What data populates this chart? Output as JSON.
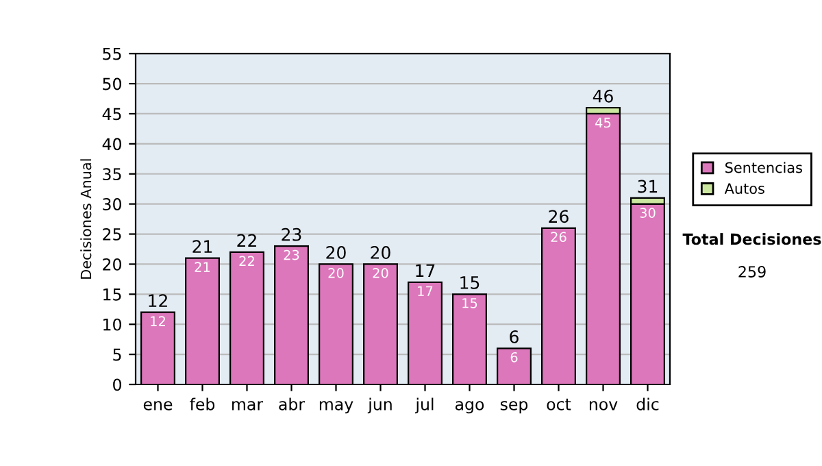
{
  "chart_data": {
    "type": "bar",
    "stacked": true,
    "ylabel": "Decisiones Anual",
    "categories": [
      "ene",
      "feb",
      "mar",
      "abr",
      "may",
      "jun",
      "jul",
      "ago",
      "sep",
      "oct",
      "nov",
      "dic"
    ],
    "series": [
      {
        "name": "Sentencias",
        "color": "#dd77bb",
        "values": [
          12,
          21,
          22,
          23,
          20,
          20,
          17,
          15,
          6,
          26,
          45,
          30
        ],
        "value_labels": [
          "12",
          "21",
          "22",
          "23",
          "20",
          "20",
          "17",
          "15",
          "6",
          "26",
          "45",
          "30"
        ]
      },
      {
        "name": "Autos",
        "color": "#cce8a0",
        "values": [
          null,
          null,
          null,
          null,
          null,
          null,
          null,
          null,
          null,
          null,
          1,
          1
        ]
      }
    ],
    "totals": [
      "12",
      "21",
      "22",
      "23",
      "20",
      "20",
      "17",
      "15",
      "6",
      "26",
      "46",
      "31"
    ],
    "ylim": [
      0,
      55
    ],
    "yticks": [
      0,
      5,
      10,
      15,
      20,
      25,
      30,
      35,
      40,
      45,
      50,
      55
    ],
    "grid": "y",
    "legend": "right",
    "annotations": [
      "Total Decisiones",
      "259"
    ]
  }
}
